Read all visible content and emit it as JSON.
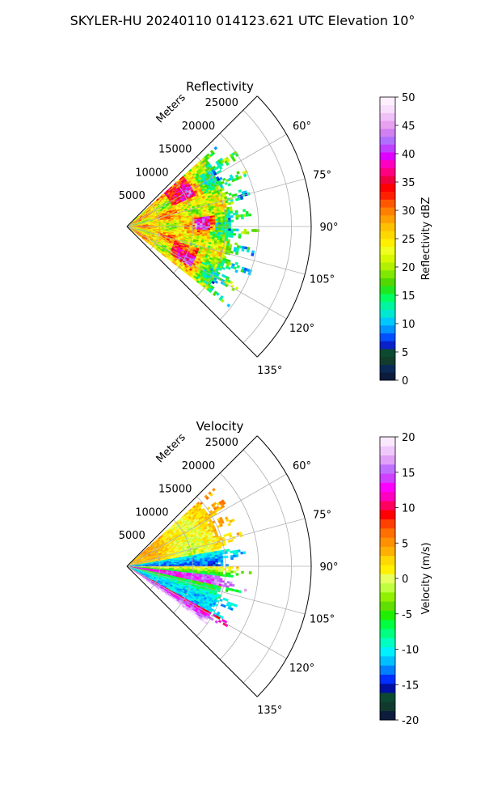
{
  "suptitle": "SKYLER-HU  20240110  014123.621 UTC Elevation 10°",
  "chart_data": [
    {
      "type": "heatmap",
      "projection": "polar-sector",
      "title": "Reflectivity",
      "range_label": "Meters",
      "range_ticks": [
        "5000",
        "10000",
        "15000",
        "20000",
        "25000"
      ],
      "range_tick_values": [
        5000,
        10000,
        15000,
        20000,
        25000
      ],
      "max_range_m": 28000,
      "azimuth_ticks": [
        "60°",
        "75°",
        "90°",
        "105°",
        "120°",
        "135°"
      ],
      "azimuth_tick_values": [
        60,
        75,
        90,
        105,
        120,
        135
      ],
      "azimuth_range_deg": [
        45,
        135
      ],
      "data_azimuth_range_deg": [
        48,
        128
      ],
      "data_range_m": [
        0,
        18500
      ],
      "grid": true,
      "colorbar": {
        "label": "Reflectivity dBZ",
        "ticks": [
          "0",
          "5",
          "10",
          "15",
          "20",
          "25",
          "30",
          "35",
          "40",
          "45",
          "50"
        ],
        "range": [
          0,
          50
        ],
        "colors": [
          "#0d1b3d",
          "#0a2a55",
          "#123d2c",
          "#0b4a30",
          "#0a20c8",
          "#0050ff",
          "#0094ff",
          "#00c8ff",
          "#00e8d0",
          "#00f5a0",
          "#00ff60",
          "#20e820",
          "#50d800",
          "#80e800",
          "#b0f000",
          "#d8f800",
          "#f0ff20",
          "#fff000",
          "#ffd800",
          "#ffc000",
          "#ffa000",
          "#ff8000",
          "#ff5800",
          "#ff2000",
          "#ff0000",
          "#f00040",
          "#ff0080",
          "#ff00c0",
          "#e000ff",
          "#c040ff",
          "#b070ff",
          "#d080f0",
          "#e8a0f0",
          "#f0c0f8",
          "#f8e0fc",
          "#fff0ff"
        ]
      }
    },
    {
      "type": "heatmap",
      "projection": "polar-sector",
      "title": "Velocity",
      "range_label": "Meters",
      "range_ticks": [
        "5000",
        "10000",
        "15000",
        "20000",
        "25000"
      ],
      "range_tick_values": [
        5000,
        10000,
        15000,
        20000,
        25000
      ],
      "max_range_m": 28000,
      "azimuth_ticks": [
        "60°",
        "75°",
        "90°",
        "105°",
        "120°",
        "135°"
      ],
      "azimuth_tick_values": [
        60,
        75,
        90,
        105,
        120,
        135
      ],
      "azimuth_range_deg": [
        45,
        135
      ],
      "data_azimuth_range_deg": [
        48,
        125
      ],
      "data_range_m": [
        0,
        17000
      ],
      "grid": true,
      "colorbar": {
        "label": "Velocity (m/s)",
        "ticks": [
          "-20",
          "-15",
          "-10",
          "-5",
          "0",
          "5",
          "10",
          "15",
          "20"
        ],
        "range": [
          -20,
          20
        ],
        "colors": [
          "#0d1b3d",
          "#113a2e",
          "#0b4a30",
          "#0010a0",
          "#0030ff",
          "#0080ff",
          "#00c0ff",
          "#00f0ff",
          "#00ffc0",
          "#00ff80",
          "#00ff40",
          "#20f000",
          "#60e000",
          "#90f000",
          "#c0ff40",
          "#e8ff60",
          "#fff000",
          "#ffd800",
          "#ffb000",
          "#ff9000",
          "#ff7000",
          "#ff4000",
          "#ff0000",
          "#ff0060",
          "#ff00c0",
          "#ff00ff",
          "#d040ff",
          "#c070ff",
          "#e0a0f8",
          "#f0c8fc",
          "#fae8fe"
        ]
      }
    }
  ]
}
